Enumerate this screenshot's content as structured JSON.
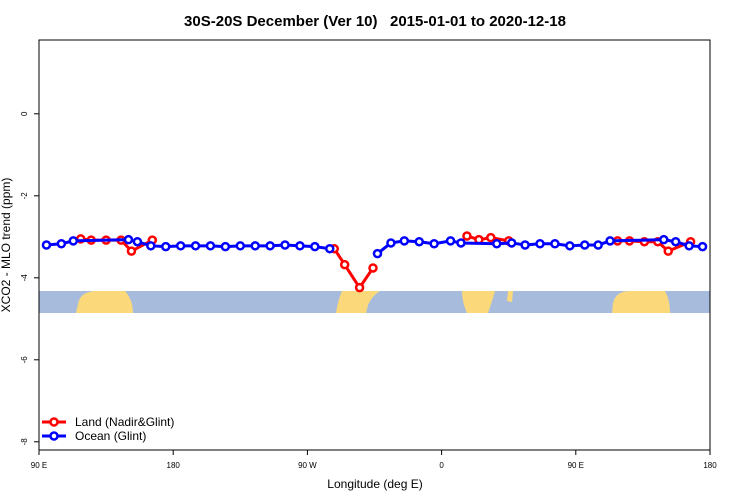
{
  "chart_data": {
    "type": "line",
    "title": "30S-20S December (Ver 10)   2015-01-01 to 2020-12-18",
    "x_label": "Longitude (deg E)",
    "y_label": "XCO2 - MLO trend (ppm)",
    "xlim": [
      90,
      540
    ],
    "xticks": [
      {
        "value": 90,
        "label": "90 E"
      },
      180,
      {
        "value": 270,
        "label": "90 W"
      },
      {
        "value": 360,
        "label": "0"
      },
      {
        "value": 450,
        "label": "90 E"
      },
      {
        "value": 540,
        "label": "180"
      }
    ],
    "ylim": [
      -8.2,
      1.8
    ],
    "yticks": [
      0,
      -2,
      -4,
      -6,
      -8
    ],
    "legend": "bottom-left",
    "series": [
      {
        "name": "Land (Nadir&Glint)",
        "color": "#ff0000",
        "x": [
          118,
          125,
          135,
          145,
          152,
          166,
          null,
          288,
          295,
          305,
          314,
          null,
          377,
          385,
          393,
          405,
          null,
          478,
          486,
          496,
          505,
          512,
          527
        ],
        "values": [
          -3.05,
          -3.08,
          -3.08,
          -3.08,
          -3.35,
          -3.08,
          null,
          -3.29,
          -3.68,
          -4.24,
          -3.76,
          null,
          -2.98,
          -3.07,
          -3.02,
          -3.1,
          null,
          -3.1,
          -3.1,
          -3.12,
          -3.12,
          -3.35,
          -3.12
        ]
      },
      {
        "name": "Ocean (Glint)",
        "color": "#0000ff",
        "x": [
          95,
          105,
          113,
          150,
          156,
          165,
          175,
          185,
          195,
          205,
          215,
          225,
          235,
          245,
          255,
          265,
          275,
          285,
          null,
          317,
          326,
          335,
          345,
          355,
          366,
          373,
          397,
          407,
          416,
          426,
          436,
          446,
          456,
          465,
          473,
          509,
          517,
          526,
          535
        ],
        "values": [
          -3.2,
          -3.17,
          -3.1,
          -3.07,
          -3.12,
          -3.22,
          -3.24,
          -3.22,
          -3.22,
          -3.22,
          -3.24,
          -3.22,
          -3.22,
          -3.22,
          -3.2,
          -3.22,
          -3.24,
          -3.29,
          null,
          -3.41,
          -3.15,
          -3.1,
          -3.12,
          -3.17,
          -3.1,
          -3.15,
          -3.17,
          -3.15,
          -3.2,
          -3.17,
          -3.17,
          -3.22,
          -3.2,
          -3.2,
          -3.1,
          -3.07,
          -3.12,
          -3.22,
          -3.24
        ]
      }
    ]
  }
}
